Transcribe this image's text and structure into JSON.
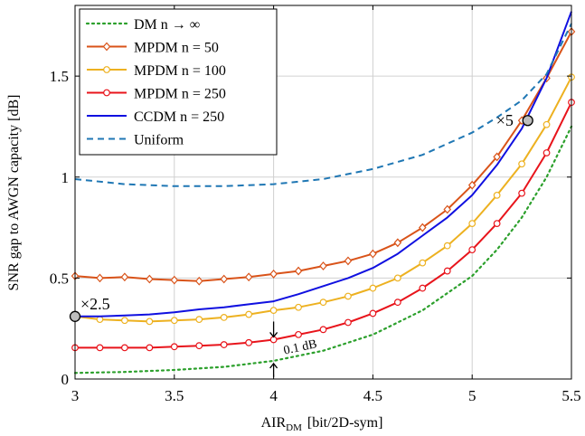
{
  "chart_data": {
    "type": "line",
    "xlabel": "AIR",
    "xlabel_sub": "DM",
    "xlabel_unit": "[bit/2D-sym]",
    "ylabel": "SNR gap to AWGN capacity [dB]",
    "xlim": [
      3,
      5.5
    ],
    "ylim": [
      0,
      1.85
    ],
    "xticks": [
      3,
      3.5,
      4,
      4.5,
      5,
      5.5
    ],
    "xtick_labels": [
      "3",
      "3.5",
      "4",
      "4.5",
      "5",
      "5.5"
    ],
    "yticks": [
      0,
      0.5,
      1,
      1.5
    ],
    "ytick_labels": [
      "0",
      "0.5",
      "1",
      "1.5"
    ],
    "grid": true,
    "legend_position": "top-left",
    "series": [
      {
        "name": "DM n → ∞",
        "color": "#2ca02c",
        "style": "dotted",
        "marker": "none",
        "x": [
          3.0,
          3.25,
          3.5,
          3.75,
          4.0,
          4.25,
          4.5,
          4.75,
          5.0,
          5.125,
          5.25,
          5.375,
          5.5
        ],
        "y": [
          0.03,
          0.035,
          0.045,
          0.06,
          0.09,
          0.14,
          0.22,
          0.34,
          0.51,
          0.64,
          0.8,
          1.0,
          1.25
        ]
      },
      {
        "name": "MPDM n = 50",
        "color": "#d95319",
        "style": "solid",
        "marker": "diamond",
        "x": [
          3.0,
          3.125,
          3.25,
          3.375,
          3.5,
          3.625,
          3.75,
          3.875,
          4.0,
          4.125,
          4.25,
          4.375,
          4.5,
          4.625,
          4.75,
          4.875,
          5.0,
          5.125,
          5.25,
          5.375,
          5.5
        ],
        "y": [
          0.51,
          0.5,
          0.505,
          0.495,
          0.49,
          0.485,
          0.495,
          0.505,
          0.52,
          0.535,
          0.56,
          0.585,
          0.62,
          0.675,
          0.75,
          0.84,
          0.96,
          1.1,
          1.28,
          1.49,
          1.72
        ]
      },
      {
        "name": "MPDM n = 100",
        "color": "#edb120",
        "style": "solid",
        "marker": "circle",
        "x": [
          3.0,
          3.125,
          3.25,
          3.375,
          3.5,
          3.625,
          3.75,
          3.875,
          4.0,
          4.125,
          4.25,
          4.375,
          4.5,
          4.625,
          4.75,
          4.875,
          5.0,
          5.125,
          5.25,
          5.375,
          5.5
        ],
        "y": [
          0.31,
          0.295,
          0.29,
          0.285,
          0.29,
          0.295,
          0.305,
          0.32,
          0.34,
          0.355,
          0.38,
          0.41,
          0.45,
          0.5,
          0.575,
          0.66,
          0.77,
          0.91,
          1.065,
          1.26,
          1.495
        ]
      },
      {
        "name": "MPDM n = 250",
        "color": "#e8141b",
        "style": "solid",
        "marker": "circle",
        "x": [
          3.0,
          3.125,
          3.25,
          3.375,
          3.5,
          3.625,
          3.75,
          3.875,
          4.0,
          4.125,
          4.25,
          4.375,
          4.5,
          4.625,
          4.75,
          4.875,
          5.0,
          5.125,
          5.25,
          5.375,
          5.5
        ],
        "y": [
          0.155,
          0.155,
          0.155,
          0.155,
          0.16,
          0.165,
          0.17,
          0.18,
          0.195,
          0.22,
          0.245,
          0.28,
          0.325,
          0.38,
          0.45,
          0.535,
          0.64,
          0.77,
          0.92,
          1.12,
          1.37
        ]
      },
      {
        "name": "CCDM n = 250",
        "color": "#1010e0",
        "style": "solid",
        "marker": "none",
        "x": [
          3.0,
          3.125,
          3.25,
          3.375,
          3.5,
          3.625,
          3.75,
          3.875,
          4.0,
          4.125,
          4.25,
          4.375,
          4.5,
          4.625,
          4.75,
          4.875,
          5.0,
          5.125,
          5.25,
          5.375,
          5.5
        ],
        "y": [
          0.31,
          0.31,
          0.315,
          0.32,
          0.33,
          0.345,
          0.355,
          0.37,
          0.385,
          0.42,
          0.46,
          0.5,
          0.55,
          0.62,
          0.71,
          0.8,
          0.91,
          1.06,
          1.24,
          1.49,
          1.82
        ]
      },
      {
        "name": "Uniform",
        "color": "#1f77b4",
        "style": "dashed",
        "marker": "none",
        "x": [
          3.0,
          3.25,
          3.5,
          3.75,
          4.0,
          4.25,
          4.5,
          4.75,
          5.0,
          5.125,
          5.25,
          5.375,
          5.5
        ],
        "y": [
          0.99,
          0.965,
          0.955,
          0.955,
          0.965,
          0.99,
          1.04,
          1.11,
          1.22,
          1.295,
          1.38,
          1.51,
          1.76
        ]
      }
    ],
    "annotations": [
      {
        "text": "×2.5",
        "x": 3.0,
        "y": 0.31
      },
      {
        "text": "×5",
        "x": 5.28,
        "y": 1.28
      },
      {
        "text": "0.1 dB",
        "x": 4.0,
        "y": 0.14
      }
    ]
  }
}
